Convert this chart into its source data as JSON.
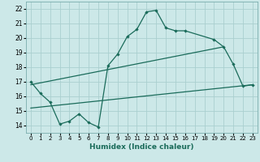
{
  "xlabel": "Humidex (Indice chaleur)",
  "bg_color": "#cce8e8",
  "grid_color": "#aacfcf",
  "line_color": "#1a6b5a",
  "xlim": [
    -0.5,
    23.5
  ],
  "ylim": [
    13.5,
    22.5
  ],
  "xticks": [
    0,
    1,
    2,
    3,
    4,
    5,
    6,
    7,
    8,
    9,
    10,
    11,
    12,
    13,
    14,
    15,
    16,
    17,
    18,
    19,
    20,
    21,
    22,
    23
  ],
  "yticks": [
    14,
    15,
    16,
    17,
    18,
    19,
    20,
    21,
    22
  ],
  "line1_x": [
    0,
    1,
    2,
    3,
    4,
    5,
    6,
    7,
    8,
    9,
    10,
    11,
    12,
    13,
    14,
    15,
    16,
    19,
    20,
    21,
    22,
    23
  ],
  "line1_y": [
    17.0,
    16.2,
    15.6,
    14.1,
    14.3,
    14.8,
    14.2,
    13.9,
    18.1,
    18.9,
    20.1,
    20.6,
    21.8,
    21.9,
    20.7,
    20.5,
    20.5,
    19.9,
    19.4,
    18.2,
    16.7,
    16.8
  ],
  "line2_x": [
    0,
    20
  ],
  "line2_y": [
    16.8,
    19.4
  ],
  "line3_x": [
    0,
    23
  ],
  "line3_y": [
    15.2,
    16.8
  ]
}
